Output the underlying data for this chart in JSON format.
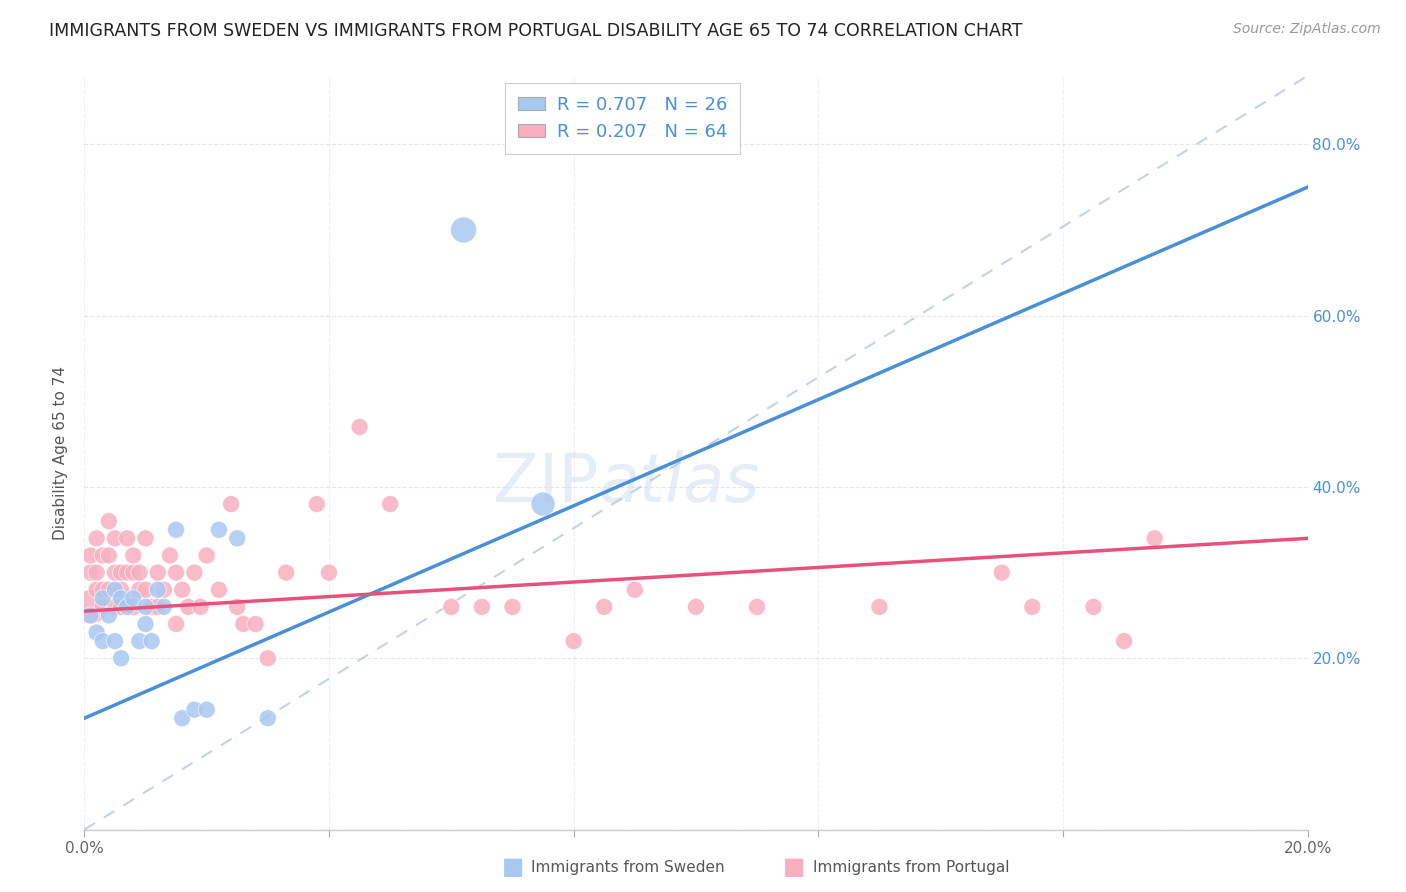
{
  "title": "IMMIGRANTS FROM SWEDEN VS IMMIGRANTS FROM PORTUGAL DISABILITY AGE 65 TO 74 CORRELATION CHART",
  "source": "Source: ZipAtlas.com",
  "ylabel": "Disability Age 65 to 74",
  "xlim": [
    0.0,
    0.2
  ],
  "ylim": [
    0.0,
    0.88
  ],
  "yticks": [
    0.0,
    0.2,
    0.4,
    0.6,
    0.8
  ],
  "ytick_labels": [
    "",
    "20.0%",
    "40.0%",
    "60.0%",
    "80.0%"
  ],
  "xticks": [
    0.0,
    0.04,
    0.08,
    0.12,
    0.16,
    0.2
  ],
  "xtick_labels": [
    "0.0%",
    "",
    "",
    "",
    "",
    "20.0%"
  ],
  "sweden_color": "#a8c8f0",
  "portugal_color": "#f8b0c0",
  "sweden_R": 0.707,
  "sweden_N": 26,
  "portugal_R": 0.207,
  "portugal_N": 64,
  "sweden_line_color": "#4a90d9",
  "portugal_line_color": "#e8527a",
  "diagonal_color": "#b8c8d8",
  "watermark": "ZIPatlas",
  "sweden_line_x0": 0.0,
  "sweden_line_y0": 0.13,
  "sweden_line_x1": 0.2,
  "sweden_line_y1": 0.75,
  "portugal_line_x0": 0.0,
  "portugal_line_x1": 0.2,
  "portugal_line_y0": 0.255,
  "portugal_line_y1": 0.34,
  "sweden_x": [
    0.001,
    0.002,
    0.003,
    0.003,
    0.004,
    0.005,
    0.005,
    0.006,
    0.006,
    0.007,
    0.008,
    0.009,
    0.01,
    0.01,
    0.011,
    0.012,
    0.013,
    0.015,
    0.016,
    0.018,
    0.02,
    0.022,
    0.025,
    0.03,
    0.062,
    0.075
  ],
  "sweden_y": [
    0.25,
    0.23,
    0.22,
    0.27,
    0.25,
    0.22,
    0.28,
    0.2,
    0.27,
    0.26,
    0.27,
    0.22,
    0.24,
    0.26,
    0.22,
    0.28,
    0.26,
    0.35,
    0.13,
    0.14,
    0.14,
    0.35,
    0.34,
    0.13,
    0.7,
    0.38
  ],
  "sweden_sizes": [
    30,
    30,
    30,
    30,
    30,
    30,
    30,
    30,
    30,
    30,
    30,
    30,
    30,
    30,
    30,
    30,
    30,
    30,
    30,
    30,
    30,
    30,
    30,
    30,
    70,
    60
  ],
  "portugal_x": [
    0.001,
    0.001,
    0.001,
    0.002,
    0.002,
    0.002,
    0.003,
    0.003,
    0.003,
    0.004,
    0.004,
    0.004,
    0.005,
    0.005,
    0.005,
    0.006,
    0.006,
    0.006,
    0.007,
    0.007,
    0.008,
    0.008,
    0.008,
    0.009,
    0.009,
    0.01,
    0.01,
    0.011,
    0.012,
    0.012,
    0.013,
    0.014,
    0.015,
    0.015,
    0.016,
    0.017,
    0.018,
    0.019,
    0.02,
    0.022,
    0.024,
    0.025,
    0.026,
    0.028,
    0.03,
    0.033,
    0.038,
    0.04,
    0.045,
    0.05,
    0.06,
    0.065,
    0.07,
    0.08,
    0.085,
    0.09,
    0.1,
    0.11,
    0.13,
    0.15,
    0.155,
    0.165,
    0.17,
    0.175
  ],
  "portugal_y": [
    0.26,
    0.3,
    0.32,
    0.28,
    0.3,
    0.34,
    0.26,
    0.28,
    0.32,
    0.28,
    0.32,
    0.36,
    0.26,
    0.3,
    0.34,
    0.26,
    0.28,
    0.3,
    0.3,
    0.34,
    0.26,
    0.3,
    0.32,
    0.28,
    0.3,
    0.28,
    0.34,
    0.26,
    0.26,
    0.3,
    0.28,
    0.32,
    0.24,
    0.3,
    0.28,
    0.26,
    0.3,
    0.26,
    0.32,
    0.28,
    0.38,
    0.26,
    0.24,
    0.24,
    0.2,
    0.3,
    0.38,
    0.3,
    0.47,
    0.38,
    0.26,
    0.26,
    0.26,
    0.22,
    0.26,
    0.28,
    0.26,
    0.26,
    0.26,
    0.3,
    0.26,
    0.26,
    0.22,
    0.34
  ],
  "portugal_sizes": [
    120,
    30,
    30,
    30,
    30,
    30,
    30,
    30,
    30,
    30,
    30,
    30,
    30,
    30,
    30,
    30,
    30,
    30,
    30,
    30,
    30,
    30,
    30,
    30,
    30,
    30,
    30,
    30,
    30,
    30,
    30,
    30,
    30,
    30,
    30,
    30,
    30,
    30,
    30,
    30,
    30,
    30,
    30,
    30,
    30,
    30,
    30,
    30,
    30,
    30,
    30,
    30,
    30,
    30,
    30,
    30,
    30,
    30,
    30,
    30,
    30,
    30,
    30,
    30
  ]
}
